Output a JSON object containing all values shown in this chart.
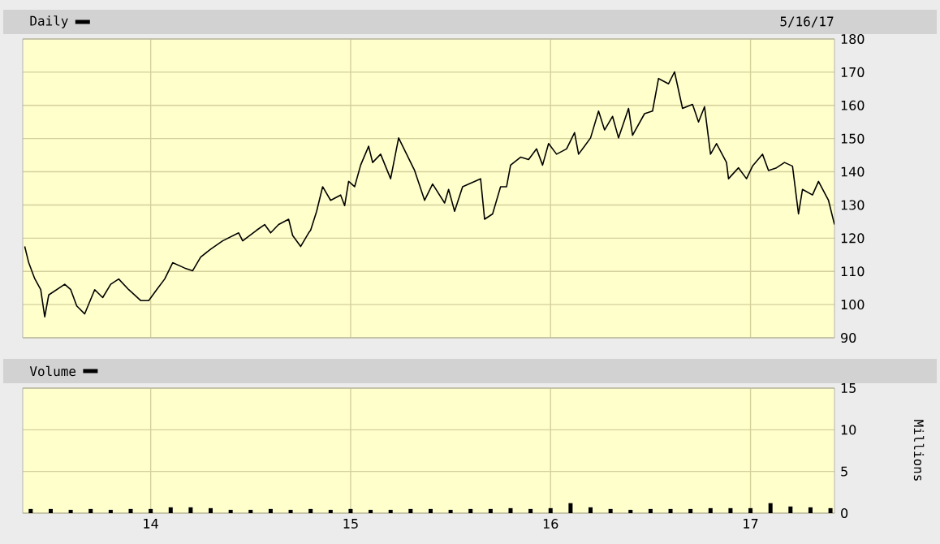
{
  "chart_data": [
    {
      "type": "line",
      "subtitle": "5/16/17",
      "xlim": [
        2013.36,
        2017.42
      ],
      "ylim": [
        90,
        180
      ],
      "xticks": [
        {
          "value": 2014,
          "label": null
        },
        {
          "value": 2015,
          "label": null
        },
        {
          "value": 2016,
          "label": null
        },
        {
          "value": 2017,
          "label": null
        }
      ],
      "yticks": [
        90,
        100,
        110,
        120,
        130,
        140,
        150,
        160,
        170,
        180
      ],
      "grid": true,
      "legend": "top left",
      "tick_labels": "y",
      "series": [
        {
          "name": "Daily",
          "color": "#000000",
          "x": [
            2013.37,
            2013.39,
            2013.42,
            2013.45,
            2013.47,
            2013.49,
            2013.53,
            2013.57,
            2013.6,
            2013.63,
            2013.67,
            2013.72,
            2013.76,
            2013.8,
            2013.84,
            2013.89,
            2013.95,
            2013.99,
            2014.03,
            2014.07,
            2014.11,
            2014.17,
            2014.21,
            2014.25,
            2014.3,
            2014.36,
            2014.44,
            2014.46,
            2014.53,
            2014.57,
            2014.6,
            2014.64,
            2014.69,
            2014.71,
            2014.75,
            2014.79,
            2014.8,
            2014.83,
            2014.86,
            2014.9,
            2014.95,
            2014.97,
            2014.99,
            2015.02,
            2015.05,
            2015.09,
            2015.11,
            2015.15,
            2015.2,
            2015.24,
            2015.28,
            2015.32,
            2015.37,
            2015.41,
            2015.47,
            2015.49,
            2015.52,
            2015.56,
            2015.62,
            2015.65,
            2015.67,
            2015.71,
            2015.75,
            2015.78,
            2015.8,
            2015.85,
            2015.89,
            2015.93,
            2015.96,
            2015.99,
            2016.03,
            2016.08,
            2016.12,
            2016.14,
            2016.17,
            2016.2,
            2016.24,
            2016.27,
            2016.31,
            2016.34,
            2016.39,
            2016.41,
            2016.47,
            2016.51,
            2016.54,
            2016.59,
            2016.62,
            2016.66,
            2016.71,
            2016.74,
            2016.77,
            2016.8,
            2016.83,
            2016.88,
            2016.89,
            2016.94,
            2016.98,
            2017.01,
            2017.06,
            2017.09,
            2017.13,
            2017.17,
            2017.21,
            2017.24,
            2017.26,
            2017.31,
            2017.34,
            2017.39,
            2017.42
          ],
          "values": [
            117.5,
            112.6,
            107.8,
            104.5,
            96.3,
            102.9,
            104.5,
            106.1,
            104.5,
            99.6,
            97.2,
            104.5,
            102.1,
            106.1,
            107.7,
            104.5,
            101.2,
            101.2,
            104.5,
            107.7,
            112.6,
            111.0,
            110.2,
            114.3,
            116.7,
            119.2,
            121.6,
            119.2,
            122.4,
            124.1,
            121.6,
            124.1,
            125.7,
            120.8,
            117.5,
            121.6,
            122.4,
            128.1,
            135.5,
            131.4,
            133.0,
            129.8,
            137.1,
            135.5,
            142.0,
            147.7,
            142.8,
            145.3,
            137.9,
            150.2,
            145.3,
            140.4,
            131.4,
            136.3,
            130.6,
            134.7,
            128.1,
            135.5,
            137.1,
            137.9,
            125.7,
            127.3,
            135.5,
            135.5,
            142.0,
            144.4,
            143.7,
            146.9,
            142.0,
            148.5,
            145.3,
            146.9,
            151.8,
            145.3,
            147.7,
            150.2,
            158.3,
            152.6,
            156.7,
            150.2,
            159.1,
            151.0,
            157.5,
            158.3,
            168.1,
            166.5,
            170.1,
            159.1,
            160.3,
            155.0,
            159.6,
            145.3,
            148.5,
            142.8,
            137.9,
            141.2,
            137.9,
            141.7,
            145.3,
            140.4,
            141.2,
            142.8,
            141.7,
            127.3,
            134.7,
            133.0,
            137.1,
            131.4,
            124.1
          ]
        }
      ]
    },
    {
      "type": "bar",
      "xlim": [
        2013.36,
        2017.42
      ],
      "ylim": [
        0,
        15
      ],
      "ylabel": "Millions",
      "xticks": [
        {
          "value": 2014,
          "label": "14"
        },
        {
          "value": 2015,
          "label": "15"
        },
        {
          "value": 2016,
          "label": "16"
        },
        {
          "value": 2017,
          "label": "17"
        }
      ],
      "yticks": [
        0,
        5,
        10,
        15
      ],
      "grid": true,
      "legend": "top left",
      "series": [
        {
          "name": "Volume",
          "color": "#000000",
          "x": [
            2013.4,
            2013.5,
            2013.6,
            2013.7,
            2013.8,
            2013.9,
            2014.0,
            2014.1,
            2014.2,
            2014.3,
            2014.4,
            2014.5,
            2014.6,
            2014.7,
            2014.8,
            2014.9,
            2015.0,
            2015.1,
            2015.2,
            2015.3,
            2015.4,
            2015.5,
            2015.6,
            2015.7,
            2015.8,
            2015.9,
            2016.0,
            2016.1,
            2016.2,
            2016.3,
            2016.4,
            2016.5,
            2016.6,
            2016.7,
            2016.8,
            2016.9,
            2017.0,
            2017.1,
            2017.2,
            2017.3,
            2017.4
          ],
          "values": [
            0.5,
            0.5,
            0.4,
            0.5,
            0.4,
            0.5,
            0.5,
            0.7,
            0.7,
            0.6,
            0.4,
            0.4,
            0.5,
            0.4,
            0.5,
            0.4,
            0.5,
            0.4,
            0.4,
            0.5,
            0.5,
            0.4,
            0.5,
            0.5,
            0.6,
            0.5,
            0.6,
            1.2,
            0.7,
            0.5,
            0.4,
            0.5,
            0.5,
            0.5,
            0.6,
            0.6,
            0.6,
            1.2,
            0.8,
            0.7,
            0.6
          ]
        }
      ]
    }
  ]
}
